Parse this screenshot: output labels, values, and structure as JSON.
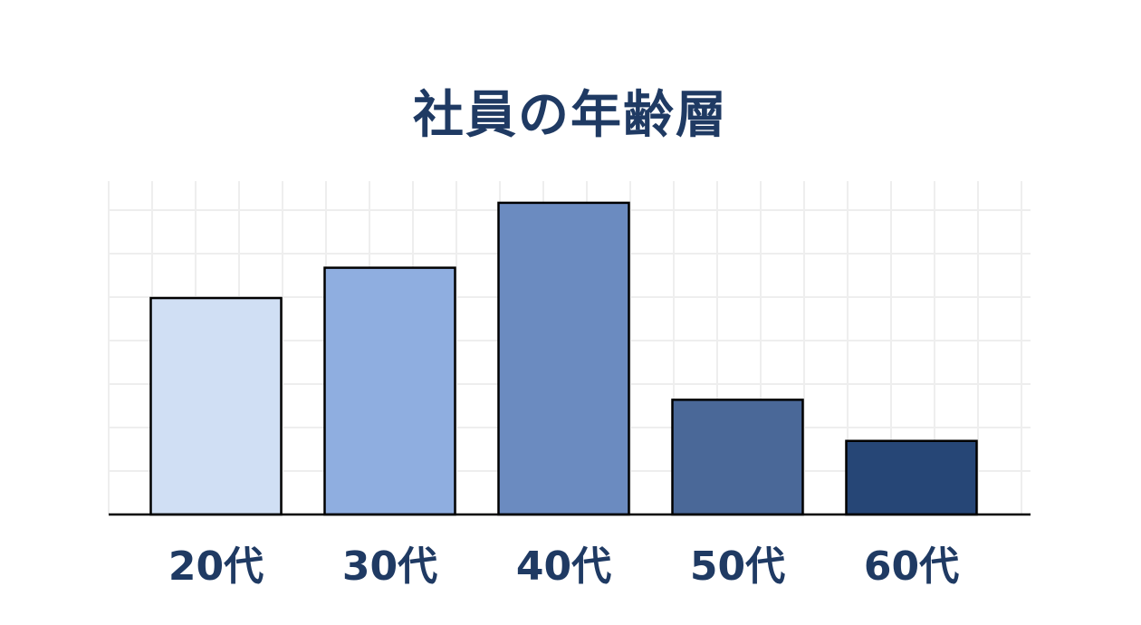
{
  "chart_data": {
    "type": "bar",
    "title": "社員の年齢層",
    "categories": [
      "20代",
      "30代",
      "40代",
      "50代",
      "60代"
    ],
    "values": [
      50,
      57,
      72,
      26.5,
      17
    ],
    "ylim": [
      0,
      77
    ],
    "grid": true,
    "colors": [
      "#d0dff4",
      "#8faee0",
      "#6b8bc0",
      "#4a6898",
      "#264676"
    ],
    "edge_color": "#000000",
    "grid_color": "#eeeeee",
    "title_color": "#1f3a63",
    "label_color": "#1f3a63"
  }
}
